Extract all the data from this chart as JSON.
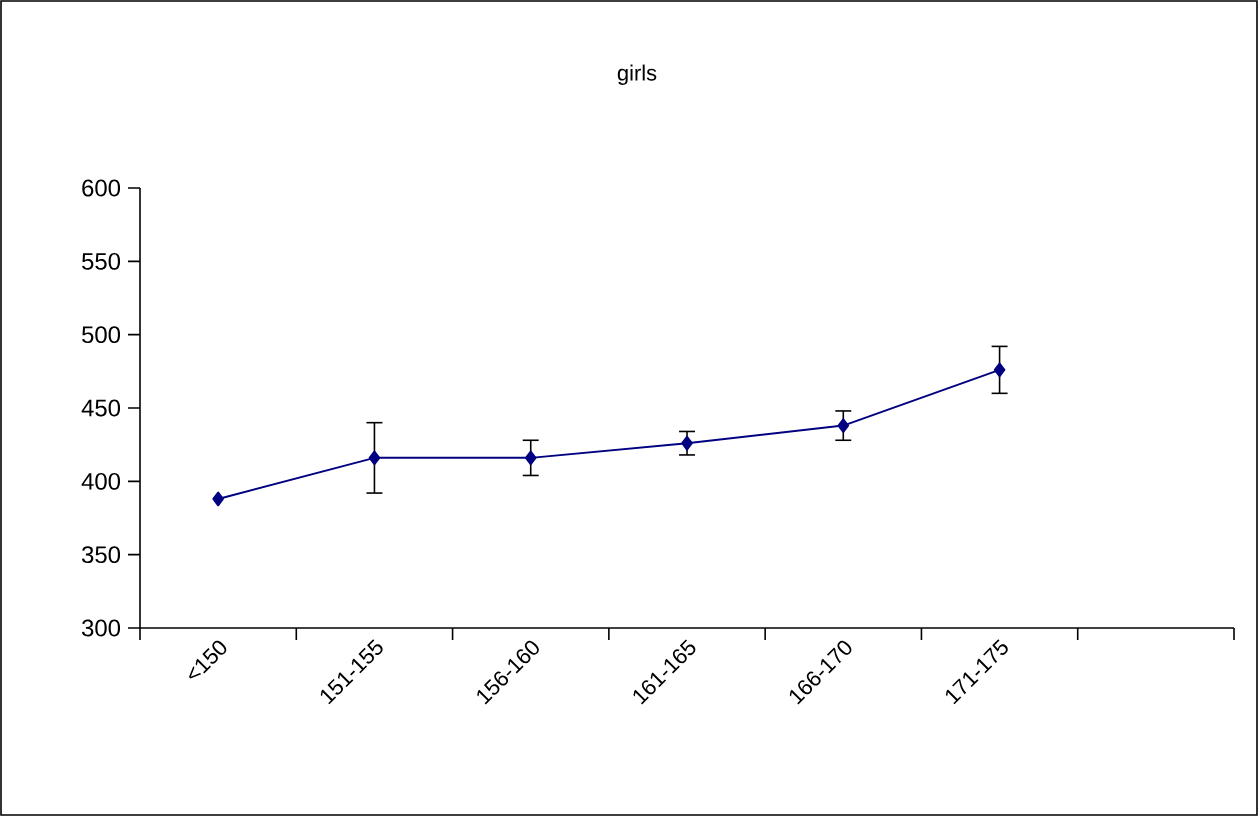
{
  "chart_data": {
    "type": "line",
    "title": "girls",
    "categories": [
      "<150",
      "151-155",
      "156-160",
      "161-165",
      "166-170",
      "171-175",
      null
    ],
    "series": [
      {
        "color": "#000080",
        "values": [
          388,
          416,
          416,
          426,
          438,
          476,
          null
        ],
        "errors": [
          null,
          24,
          12,
          8,
          10,
          16,
          null
        ]
      }
    ],
    "ylim": [
      300,
      600
    ],
    "yticks": [
      300,
      350,
      400,
      450,
      500,
      550,
      600
    ],
    "marker": "diamond",
    "line_style": "solid"
  }
}
